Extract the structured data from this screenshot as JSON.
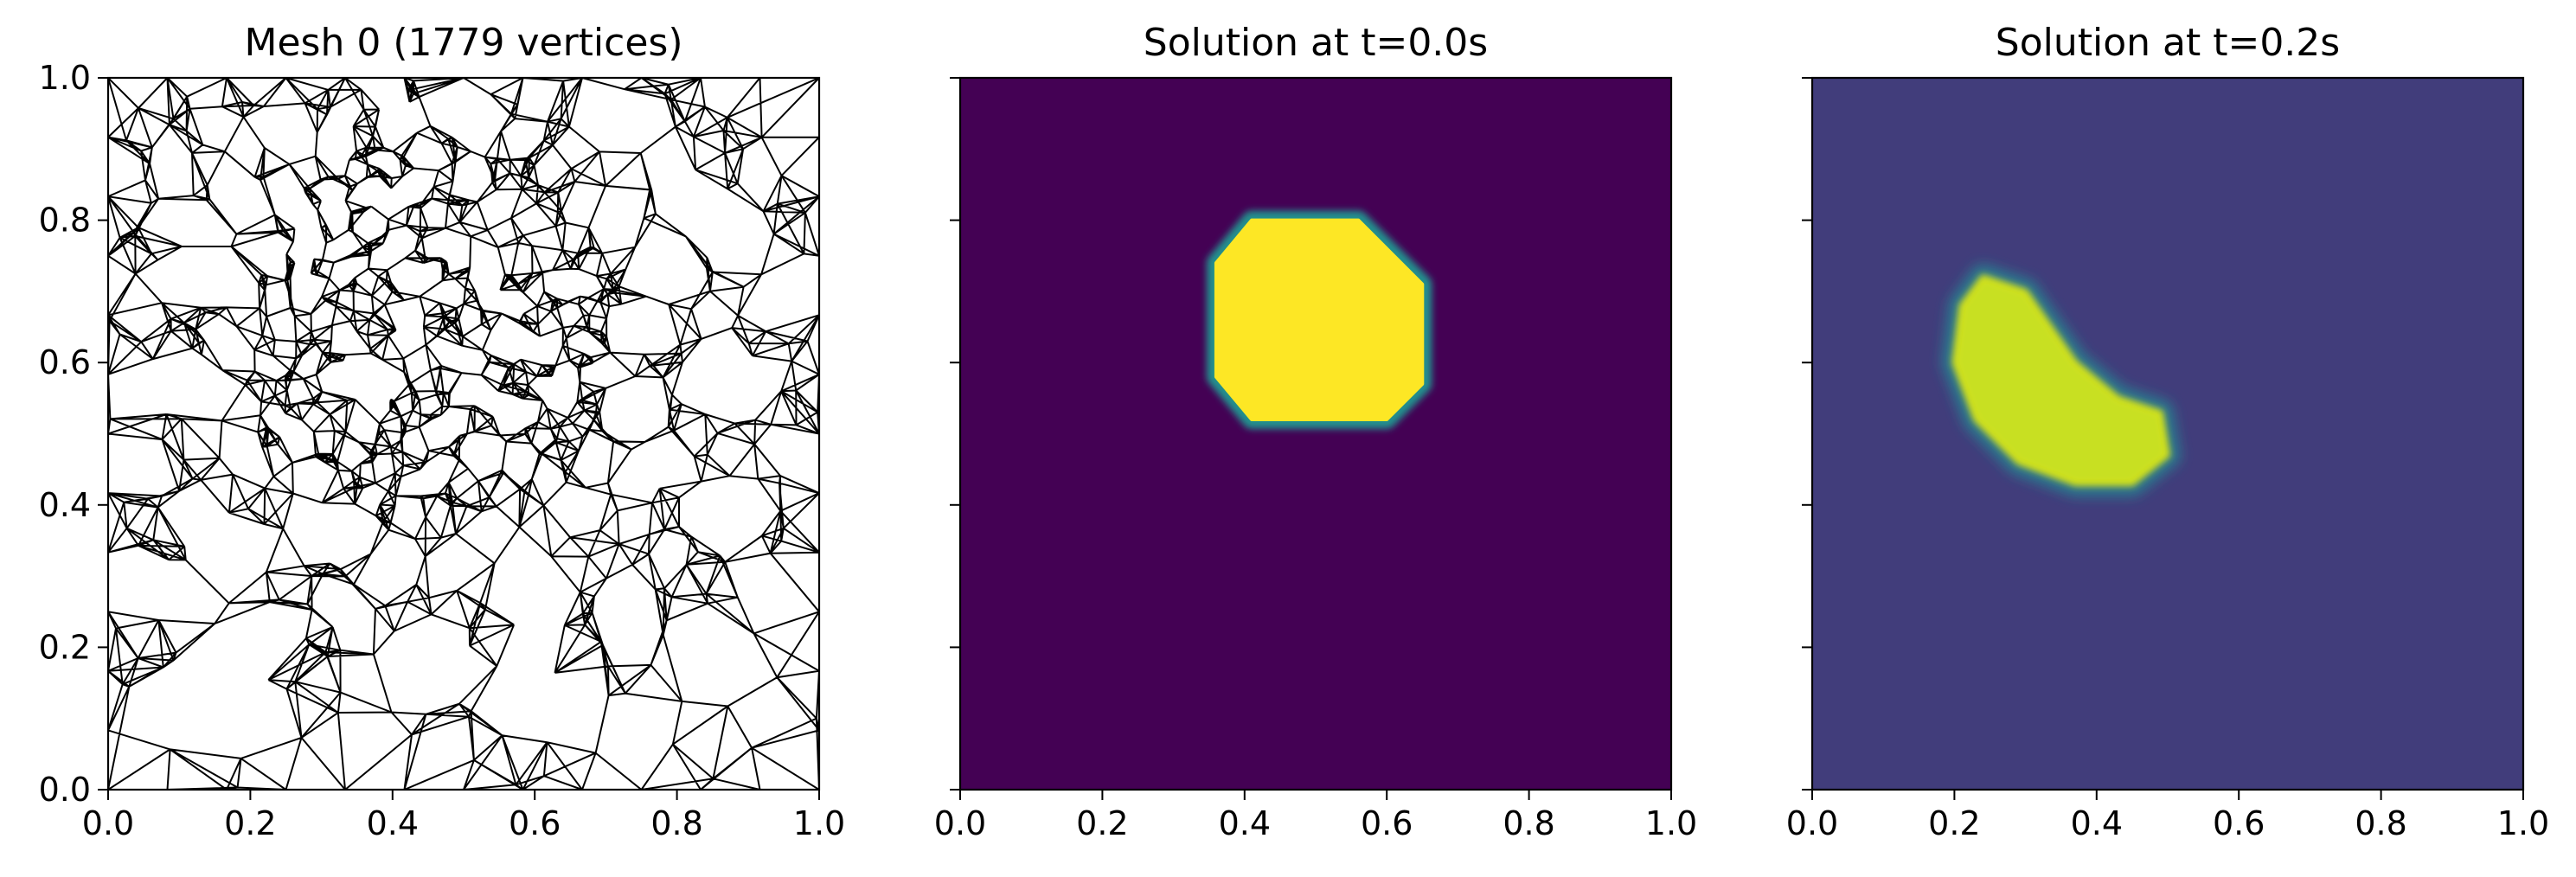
{
  "chart_data": [
    {
      "type": "mesh",
      "title": "Mesh 0 (1779 vertices)",
      "xlabel": "",
      "ylabel": "",
      "xlim": [
        0.0,
        1.0
      ],
      "ylim": [
        0.0,
        1.0
      ],
      "x_ticks": [
        "0.0",
        "0.2",
        "0.4",
        "0.6",
        "0.8",
        "1.0"
      ],
      "y_ticks": [
        "0.0",
        "0.2",
        "0.4",
        "0.6",
        "0.8",
        "1.0"
      ],
      "show_ytick_labels": true,
      "vertex_count": 1779,
      "refinement_center": [
        0.45,
        0.65
      ],
      "refinement_radius": 0.27,
      "grid": false,
      "edge_color": "#000000"
    },
    {
      "type": "heatmap",
      "title": "Solution at t=0.0s",
      "xlabel": "",
      "ylabel": "",
      "xlim": [
        0.0,
        1.0
      ],
      "ylim": [
        0.0,
        1.0
      ],
      "x_ticks": [
        "0.0",
        "0.2",
        "0.4",
        "0.6",
        "0.8",
        "1.0"
      ],
      "y_ticks": [
        "",
        "",
        "",
        "",
        "",
        ""
      ],
      "show_ytick_labels": false,
      "colormap": "viridis",
      "background_value": 0.0,
      "blob": {
        "shape": "octagon",
        "value": 1.0,
        "polygon": [
          [
            0.41,
            0.8
          ],
          [
            0.56,
            0.8
          ],
          [
            0.65,
            0.71
          ],
          [
            0.65,
            0.57
          ],
          [
            0.6,
            0.52
          ],
          [
            0.41,
            0.52
          ],
          [
            0.36,
            0.58
          ],
          [
            0.36,
            0.74
          ]
        ]
      },
      "grid": false
    },
    {
      "type": "heatmap",
      "title": "Solution at t=0.2s",
      "xlabel": "",
      "ylabel": "",
      "xlim": [
        0.0,
        1.0
      ],
      "ylim": [
        0.0,
        1.0
      ],
      "x_ticks": [
        "0.0",
        "0.2",
        "0.4",
        "0.6",
        "0.8",
        "1.0"
      ],
      "y_ticks": [
        "",
        "",
        "",
        "",
        "",
        ""
      ],
      "show_ytick_labels": false,
      "colormap": "viridis",
      "background_value": 0.1,
      "blob": {
        "shape": "crescent",
        "value": 0.95,
        "polygon": [
          [
            0.24,
            0.72
          ],
          [
            0.3,
            0.7
          ],
          [
            0.37,
            0.6
          ],
          [
            0.43,
            0.55
          ],
          [
            0.49,
            0.53
          ],
          [
            0.5,
            0.47
          ],
          [
            0.45,
            0.43
          ],
          [
            0.37,
            0.43
          ],
          [
            0.29,
            0.46
          ],
          [
            0.23,
            0.52
          ],
          [
            0.2,
            0.6
          ],
          [
            0.21,
            0.68
          ]
        ]
      },
      "grid": false
    }
  ]
}
